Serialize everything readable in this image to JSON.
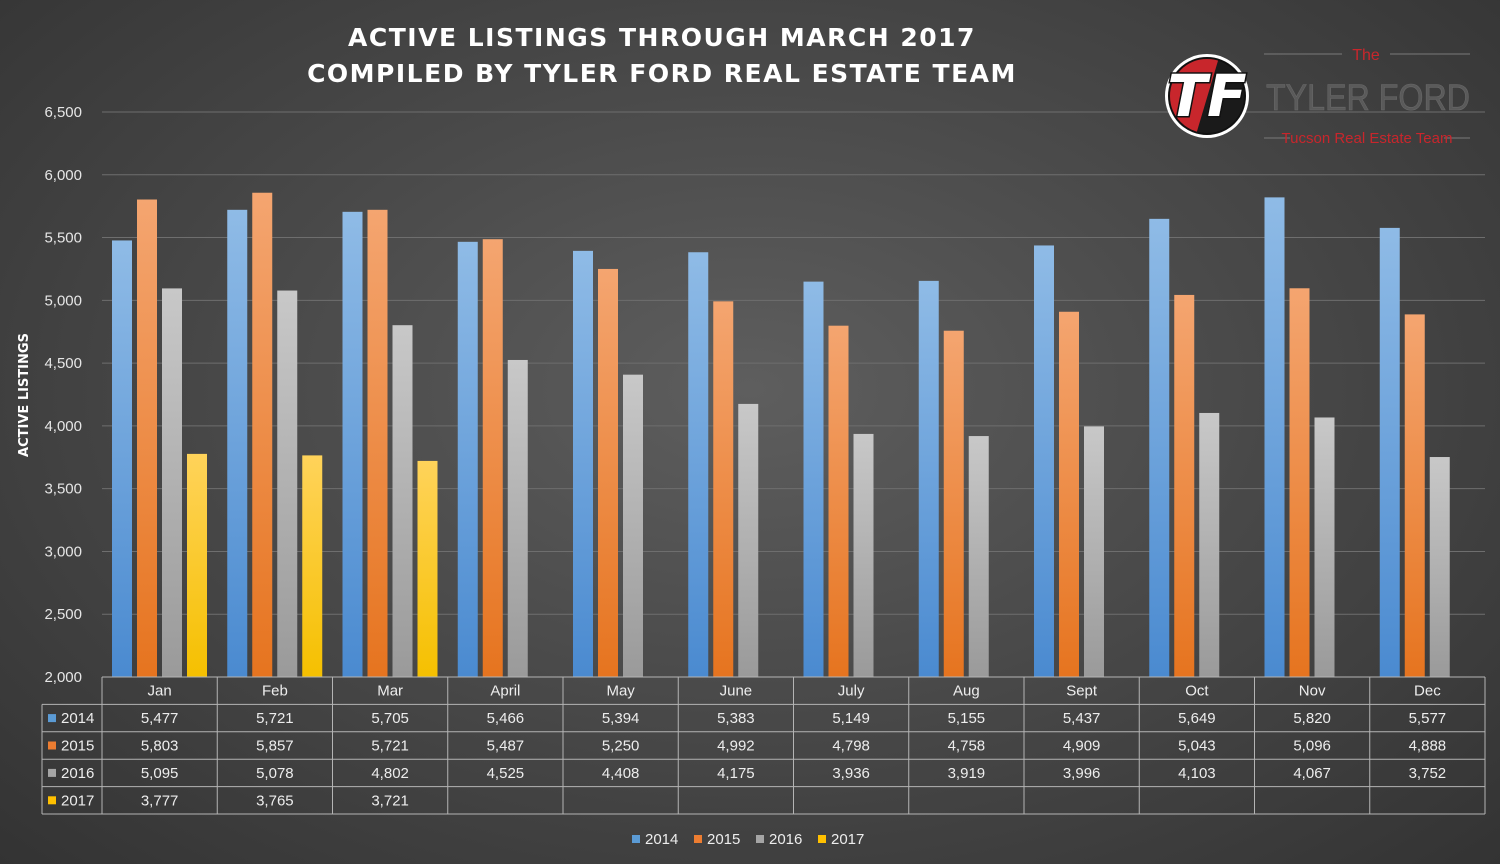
{
  "chart_data": {
    "type": "bar",
    "title": [
      "ACTIVE LISTINGS THROUGH MARCH 2017",
      "COMPILED BY TYLER FORD REAL ESTATE TEAM"
    ],
    "ylabel": "ACTIVE LISTINGS",
    "xlabel": "",
    "ylim": [
      2000,
      6500
    ],
    "yticks": [
      2000,
      2500,
      3000,
      3500,
      4000,
      4500,
      5000,
      5500,
      6000,
      6500
    ],
    "ytick_labels": [
      "2,000",
      "2,500",
      "3,000",
      "3,500",
      "4,000",
      "4,500",
      "5,000",
      "5,500",
      "6,000",
      "6,500"
    ],
    "grid": true,
    "legend_position": "bottom",
    "data_table": true,
    "categories": [
      "Jan",
      "Feb",
      "Mar",
      "April",
      "May",
      "June",
      "July",
      "Aug",
      "Sept",
      "Oct",
      "Nov",
      "Dec"
    ],
    "series": [
      {
        "name": "2014",
        "color": "#5b9bd5",
        "values": [
          5477,
          5721,
          5705,
          5466,
          5394,
          5383,
          5149,
          5155,
          5437,
          5649,
          5820,
          5577
        ],
        "labels": [
          "5,477",
          "5,721",
          "5,705",
          "5,466",
          "5,394",
          "5,383",
          "5,149",
          "5,155",
          "5,437",
          "5,649",
          "5,820",
          "5,577"
        ]
      },
      {
        "name": "2015",
        "color": "#ed7d31",
        "values": [
          5803,
          5857,
          5721,
          5487,
          5250,
          4992,
          4798,
          4758,
          4909,
          5043,
          5096,
          4888
        ],
        "labels": [
          "5,803",
          "5,857",
          "5,721",
          "5,487",
          "5,250",
          "4,992",
          "4,798",
          "4,758",
          "4,909",
          "5,043",
          "5,096",
          "4,888"
        ]
      },
      {
        "name": "2016",
        "color": "#a5a5a5",
        "values": [
          5095,
          5078,
          4802,
          4525,
          4408,
          4175,
          3936,
          3919,
          3996,
          4103,
          4067,
          3752
        ],
        "labels": [
          "5,095",
          "5,078",
          "4,802",
          "4,525",
          "4,408",
          "4,175",
          "3,936",
          "3,919",
          "3,996",
          "4,103",
          "4,067",
          "3,752"
        ]
      },
      {
        "name": "2017",
        "color": "#ffc000",
        "values": [
          3777,
          3765,
          3721,
          null,
          null,
          null,
          null,
          null,
          null,
          null,
          null,
          null
        ],
        "labels": [
          "3,777",
          "3,765",
          "3,721",
          "",
          "",
          "",
          "",
          "",
          "",
          "",
          "",
          ""
        ]
      }
    ]
  },
  "logo": {
    "initials": "TF",
    "the": "The",
    "name": "TYLER FORD",
    "subtitle": "Tucson Real Estate Team",
    "red": "#c8262c"
  }
}
